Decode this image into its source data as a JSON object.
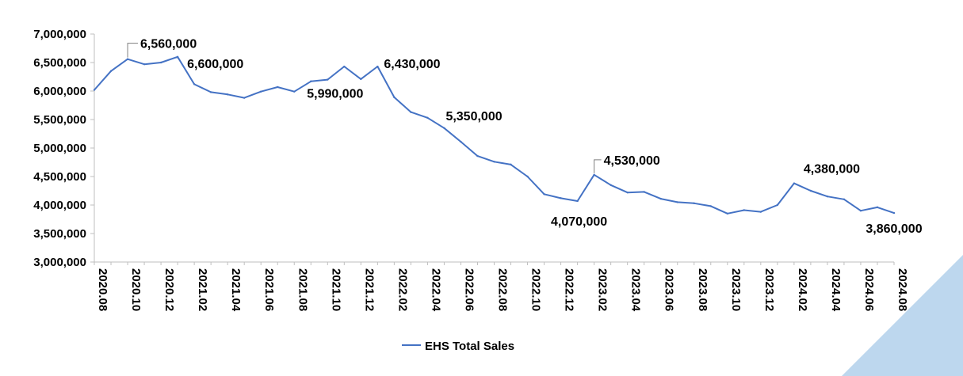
{
  "chart_data": {
    "type": "line",
    "title": "",
    "xlabel": "",
    "ylabel": "",
    "ylim": [
      3000000,
      7000000
    ],
    "y_ticks": [
      "3,000,000",
      "3,500,000",
      "4,000,000",
      "4,500,000",
      "5,000,000",
      "5,500,000",
      "6,000,000",
      "6,500,000",
      "7,000,000"
    ],
    "x_tick_labels": [
      "2020.08",
      "2020.10",
      "2020.12",
      "2021.02",
      "2021.04",
      "2021.06",
      "2021.08",
      "2021.10",
      "2021.12",
      "2022.02",
      "2022.04",
      "2022.06",
      "2022.08",
      "2022.10",
      "2022.12",
      "2023.02",
      "2023.04",
      "2023.06",
      "2023.08",
      "2023.10",
      "2023.12",
      "2024.02",
      "2024.04",
      "2024.06",
      "2024.08"
    ],
    "legend": {
      "position": "bottom",
      "entries": [
        "EHS Total Sales"
      ]
    },
    "grid": false,
    "colors": {
      "series": "#4472C4",
      "axis": "#BFBFBF",
      "corner": "#BDD7EE"
    },
    "series": [
      {
        "name": "EHS Total Sales",
        "x": [
          "2020.08",
          "2020.09",
          "2020.10",
          "2020.11",
          "2020.12",
          "2021.01",
          "2021.02",
          "2021.03",
          "2021.04",
          "2021.05",
          "2021.06",
          "2021.07",
          "2021.08",
          "2021.09",
          "2021.10",
          "2021.11",
          "2021.12",
          "2022.01",
          "2022.02",
          "2022.03",
          "2022.04",
          "2022.05",
          "2022.06",
          "2022.07",
          "2022.08",
          "2022.09",
          "2022.10",
          "2022.11",
          "2022.12",
          "2023.01",
          "2023.02",
          "2023.03",
          "2023.04",
          "2023.05",
          "2023.06",
          "2023.07",
          "2023.08",
          "2023.09",
          "2023.10",
          "2023.11",
          "2023.12",
          "2024.01",
          "2024.02",
          "2024.03",
          "2024.04",
          "2024.05",
          "2024.06",
          "2024.07",
          "2024.08"
        ],
        "values": [
          6020000,
          6350000,
          6560000,
          6470000,
          6500000,
          6600000,
          6120000,
          5980000,
          5940000,
          5880000,
          5990000,
          6070000,
          5990000,
          6170000,
          6200000,
          6430000,
          6210000,
          6430000,
          5890000,
          5630000,
          5530000,
          5350000,
          5110000,
          4860000,
          4760000,
          4710000,
          4500000,
          4190000,
          4120000,
          4070000,
          4530000,
          4350000,
          4220000,
          4230000,
          4110000,
          4050000,
          4030000,
          3980000,
          3850000,
          3910000,
          3880000,
          4000000,
          4380000,
          4250000,
          4150000,
          4100000,
          3900000,
          3960000,
          3860000
        ]
      }
    ],
    "annotations": [
      {
        "index": 2,
        "text": "6,560,000"
      },
      {
        "index": 5,
        "text": "6,600,000"
      },
      {
        "index": 12,
        "text": "5,990,000"
      },
      {
        "index": 17,
        "text": "6,430,000"
      },
      {
        "index": 21,
        "text": "5,350,000"
      },
      {
        "index": 29,
        "text": "4,070,000"
      },
      {
        "index": 30,
        "text": "4,530,000"
      },
      {
        "index": 42,
        "text": "4,380,000"
      },
      {
        "index": 48,
        "text": "3,860,000"
      }
    ]
  }
}
